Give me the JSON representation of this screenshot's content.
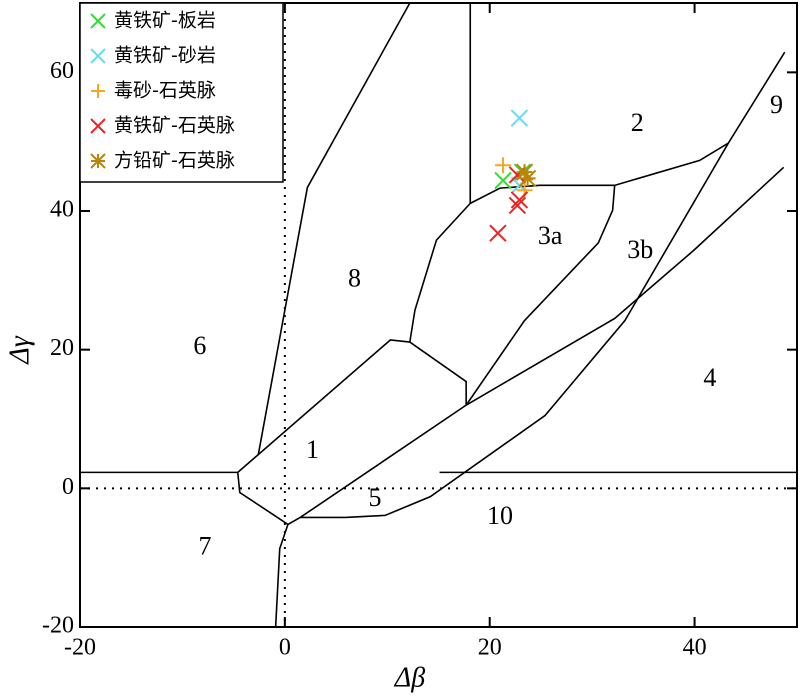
{
  "chart_data": {
    "type": "scatter",
    "x_label": "Δβ",
    "y_label": "Δγ",
    "xlim": [
      -20,
      50
    ],
    "ylim": [
      -20,
      70
    ],
    "xticks": [
      -20,
      0,
      20,
      40
    ],
    "yticks": [
      -20,
      0,
      20,
      40,
      60
    ],
    "zero_lines": true,
    "legend": "upper-left",
    "series": [
      {
        "name": "黄铁矿-板岩",
        "color": "#33dd33",
        "marker": "x",
        "x": [
          21.3,
          23.2
        ],
        "y": [
          44.4,
          45.6
        ]
      },
      {
        "name": "黄铁矿-砂岩",
        "color": "#66ddee",
        "marker": "x",
        "x": [
          22.9,
          22.9
        ],
        "y": [
          53.4,
          43.7
        ]
      },
      {
        "name": "毒砂-石英脉",
        "color": "#f5a623",
        "marker": "+",
        "x": [
          21.3,
          23.4
        ],
        "y": [
          46.6,
          43.0
        ]
      },
      {
        "name": "黄铁矿-石英脉",
        "color": "#ee2222",
        "marker": "x",
        "x": [
          20.8,
          22.7,
          22.9,
          22.7
        ],
        "y": [
          36.8,
          40.8,
          41.6,
          45.2
        ]
      },
      {
        "name": "方铅矿-石英脉",
        "color": "#b8860b",
        "marker": "*",
        "x": [
          23.4,
          23.7
        ],
        "y": [
          45.6,
          44.7
        ]
      }
    ],
    "boundaries": [
      {
        "x": [
          -20,
          -4.6,
          -4.4,
          0.3,
          1.5,
          5.9,
          9.8,
          14.2,
          25.4,
          33.2,
          43.3,
          48.8
        ],
        "y": [
          2.3,
          2.3,
          -0.6,
          -5.2,
          -4.2,
          -4.2,
          -3.9,
          -1.2,
          10.5,
          24.2,
          49.8,
          62.9
        ]
      },
      {
        "x": [
          15.1,
          50
        ],
        "y": [
          2.3,
          2.3
        ]
      },
      {
        "x": [
          1.5,
          17.7,
          32.2,
          39.9,
          48.7
        ],
        "y": [
          -4.2,
          12.0,
          24.5,
          34.3,
          46.3
        ]
      },
      {
        "x": [
          -4.6,
          10.3,
          12.2,
          17.7,
          17.7
        ],
        "y": [
          2.3,
          21.4,
          21.1,
          15.4,
          12.0
        ]
      },
      {
        "x": [
          -2.6,
          2.2,
          12.2
        ],
        "y": [
          4.8,
          43.4,
          70
        ]
      },
      {
        "x": [
          12.2,
          12.7,
          14.8,
          18.1,
          18.1
        ],
        "y": [
          21.1,
          25.7,
          35.8,
          41.1,
          70
        ]
      },
      {
        "x": [
          18.1,
          21.0,
          24.9,
          32.2,
          40.5,
          43.3
        ],
        "y": [
          41.1,
          43.3,
          43.7,
          43.7,
          47.3,
          49.8
        ]
      },
      {
        "x": [
          17.7,
          23.4,
          30.6,
          32.0,
          32.2
        ],
        "y": [
          12.0,
          24.2,
          35.4,
          40.1,
          43.7
        ]
      },
      {
        "x": [
          0.3,
          -0.5,
          -0.9
        ],
        "y": [
          -5.2,
          -8.7,
          -20
        ]
      }
    ],
    "regions": [
      {
        "label": "1",
        "x": 2.7,
        "y": 5.2
      },
      {
        "label": "2",
        "x": 34.4,
        "y": 52.4
      },
      {
        "label": "3a",
        "x": 25.9,
        "y": 36.1
      },
      {
        "label": "3b",
        "x": 34.7,
        "y": 34.1
      },
      {
        "label": "4",
        "x": 41.5,
        "y": 15.6
      },
      {
        "label": "5",
        "x": 8.8,
        "y": -1.7
      },
      {
        "label": "6",
        "x": -8.3,
        "y": 20.2
      },
      {
        "label": "7",
        "x": -7.8,
        "y": -8.7
      },
      {
        "label": "8",
        "x": 6.8,
        "y": 30.0
      },
      {
        "label": "9",
        "x": 48.0,
        "y": 55.0
      },
      {
        "label": "10",
        "x": 21.0,
        "y": -4.3
      }
    ]
  }
}
